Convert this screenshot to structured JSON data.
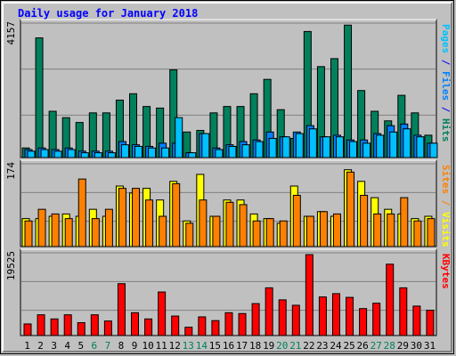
{
  "chart_data": {
    "type": "bar",
    "title": "Daily usage for January 2018",
    "categories": [
      "1",
      "2",
      "3",
      "4",
      "5",
      "6",
      "7",
      "8",
      "9",
      "10",
      "11",
      "12",
      "13",
      "14",
      "15",
      "16",
      "17",
      "18",
      "19",
      "20",
      "21",
      "22",
      "23",
      "24",
      "25",
      "26",
      "27",
      "28",
      "29",
      "30",
      "31"
    ],
    "weekend_days": [
      "6",
      "7",
      "13",
      "14",
      "20",
      "21",
      "27",
      "28"
    ],
    "weekday_label_color": "#000000",
    "weekend_label_color": "#00805c",
    "grid": true,
    "panels": [
      {
        "name": "hits-files-pages",
        "ymax": 4157,
        "ymax_label": "4157",
        "side_labels": [
          {
            "text": "Pages",
            "color": "#00c0ff"
          },
          {
            "text": " / ",
            "color": "#0000ff"
          },
          {
            "text": "Files",
            "color": "#0080ff"
          },
          {
            "text": " / ",
            "color": "#0000ff"
          },
          {
            "text": "Hits",
            "color": "#00805c"
          }
        ],
        "series": [
          {
            "name": "Hits",
            "color": "#00805c",
            "values": [
              300,
              3750,
              1450,
              1250,
              1100,
              1400,
              1400,
              1800,
              2000,
              1600,
              1550,
              2750,
              800,
              850,
              1400,
              1600,
              1600,
              2000,
              2450,
              1500,
              600,
              3950,
              2850,
              3100,
              4150,
              2100,
              1450,
              1150,
              1950,
              1400,
              700
            ]
          },
          {
            "name": "Files",
            "color": "#0080ff",
            "values": [
              250,
              300,
              250,
              300,
              200,
              200,
              200,
              500,
              400,
              350,
              450,
              450,
              150,
              750,
              300,
              400,
              500,
              550,
              800,
              650,
              800,
              1000,
              650,
              700,
              550,
              550,
              750,
              1000,
              1050,
              700,
              450
            ]
          },
          {
            "name": "Pages",
            "color": "#00c0ff",
            "values": [
              200,
              250,
              200,
              250,
              150,
              150,
              150,
              400,
              350,
              300,
              300,
              1250,
              150,
              750,
              250,
              350,
              400,
              500,
              600,
              650,
              750,
              900,
              650,
              650,
              500,
              450,
              700,
              800,
              900,
              650,
              450
            ]
          }
        ]
      },
      {
        "name": "visits-sites",
        "ymax": 174,
        "ymax_label": "174",
        "side_labels": [
          {
            "text": "Sites",
            "color": "#ff8000"
          },
          {
            "text": " / ",
            "color": "#ff8000"
          },
          {
            "text": "Visits",
            "color": "#ffff00"
          }
        ],
        "series": [
          {
            "name": "Visits",
            "color": "#ffff00",
            "values": [
              60,
              60,
              65,
              70,
              65,
              80,
              65,
              130,
              115,
              125,
              100,
              140,
              55,
              155,
              65,
              100,
              100,
              70,
              60,
              50,
              130,
              65,
              75,
              65,
              165,
              140,
              105,
              80,
              70,
              60,
              65
            ]
          },
          {
            "name": "Sites",
            "color": "#ff8000",
            "values": [
              55,
              80,
              70,
              60,
              145,
              60,
              80,
              125,
              125,
              100,
              65,
              135,
              50,
              100,
              65,
              95,
              90,
              55,
              60,
              55,
              110,
              65,
              75,
              70,
              160,
              110,
              70,
              70,
              105,
              55,
              60
            ]
          }
        ]
      },
      {
        "name": "kbytes",
        "ymax": 19525,
        "ymax_label": "19525",
        "side_labels": [
          {
            "text": "KBytes",
            "color": "#ff0000"
          }
        ],
        "series": [
          {
            "name": "KBytes",
            "color": "#ff0000",
            "values": [
              2800,
              5000,
              4000,
              5000,
              3100,
              5000,
              3500,
              12500,
              5500,
              4000,
              10500,
              4700,
              2000,
              4500,
              3600,
              5500,
              5300,
              7700,
              11500,
              8600,
              7300,
              19500,
              9300,
              10100,
              9200,
              6500,
              7800,
              17200,
              11500,
              7100,
              6100
            ]
          }
        ]
      }
    ]
  },
  "colors": {
    "background": "#c0c0c0",
    "plot_background": "#c0c0c0",
    "title": "#0000ff",
    "gridline": "#808080"
  }
}
